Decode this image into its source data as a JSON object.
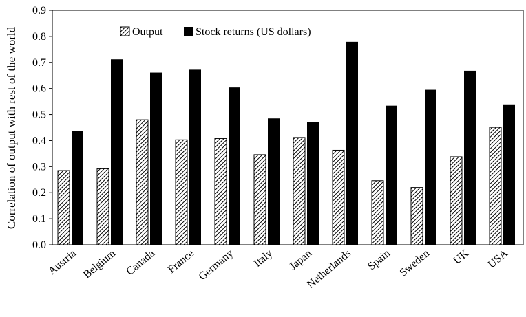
{
  "chart_data": {
    "type": "bar",
    "title": "",
    "xlabel": "",
    "ylabel": "Correlation of output with rest of the world",
    "ylim": [
      0,
      0.9
    ],
    "yticks": [
      "0.0",
      "0.1",
      "0.2",
      "0.3",
      "0.4",
      "0.5",
      "0.6",
      "0.7",
      "0.8",
      "0.9"
    ],
    "grid": false,
    "legend_position": "top-center",
    "categories": [
      "Austria",
      "Belgium",
      "Canada",
      "France",
      "Germany",
      "Italy",
      "Japan",
      "Netherlands",
      "Spain",
      "Sweden",
      "UK",
      "USA"
    ],
    "series": [
      {
        "name": "Output",
        "pattern": "diagonal-hatch",
        "values": [
          0.285,
          0.292,
          0.48,
          0.403,
          0.408,
          0.346,
          0.412,
          0.363,
          0.246,
          0.22,
          0.338,
          0.451
        ]
      },
      {
        "name": "Stock returns (US dollars)",
        "color": "#000000",
        "values": [
          0.436,
          0.712,
          0.661,
          0.672,
          0.604,
          0.485,
          0.471,
          0.779,
          0.534,
          0.595,
          0.668,
          0.539
        ]
      }
    ]
  }
}
